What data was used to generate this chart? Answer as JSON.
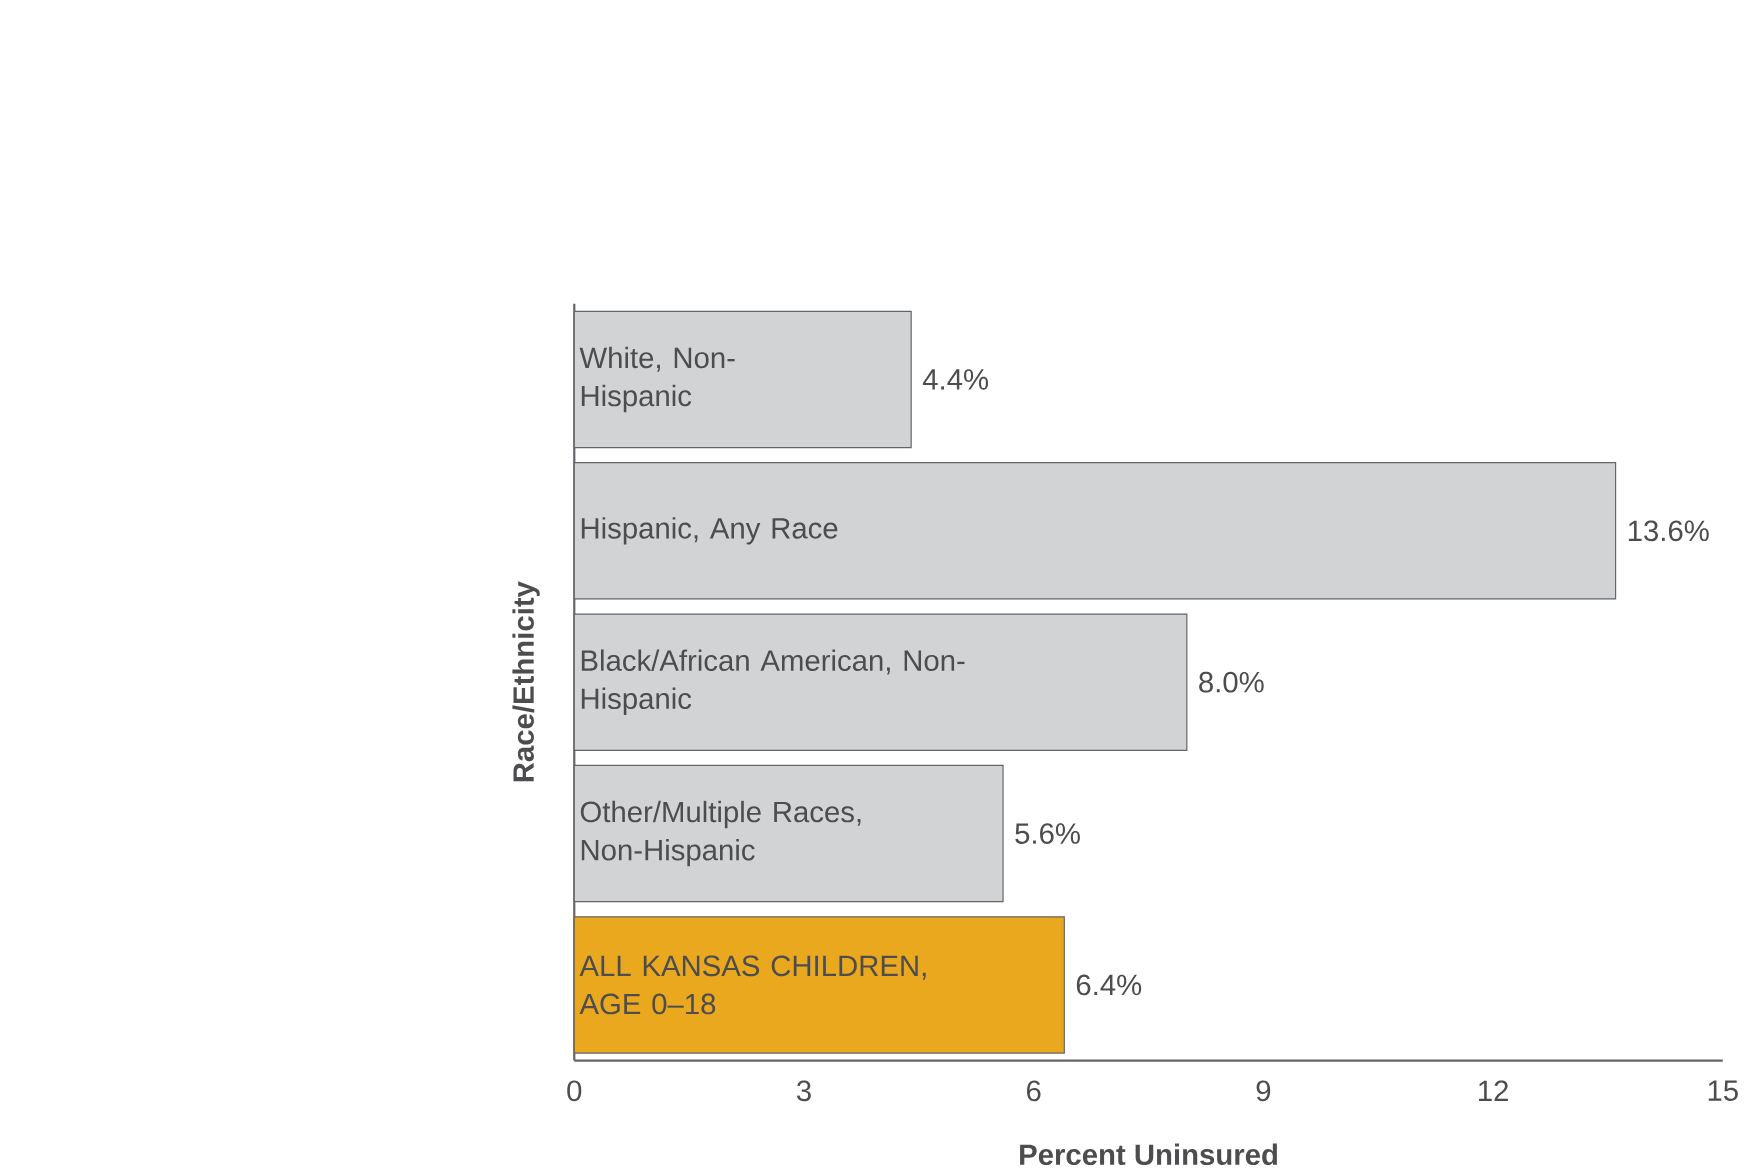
{
  "chart_data": {
    "type": "bar",
    "orientation": "horizontal",
    "categories": [
      "White, Non-Hispanic",
      "Hispanic, Any Race",
      "Black/African American, Non-Hispanic",
      "Other/Multiple Races, Non-Hispanic",
      "ALL KANSAS CHILDREN, AGE 0–18"
    ],
    "values": [
      4.4,
      13.6,
      8.0,
      5.6,
      6.4
    ],
    "value_labels": [
      "4.4%",
      "13.6%",
      "8.0%",
      "5.6%",
      "6.4%"
    ],
    "colors": [
      "#d1d3d4",
      "#d1d3d4",
      "#d1d3d4",
      "#d1d3d4",
      "#eaa81f"
    ],
    "xlim": [
      0,
      15
    ],
    "xticks": [
      0,
      3,
      6,
      9,
      12,
      15
    ],
    "xlabel": "Percent Uninsured",
    "ylabel": "Race/Ethnicity",
    "tick_labels": "x"
  }
}
